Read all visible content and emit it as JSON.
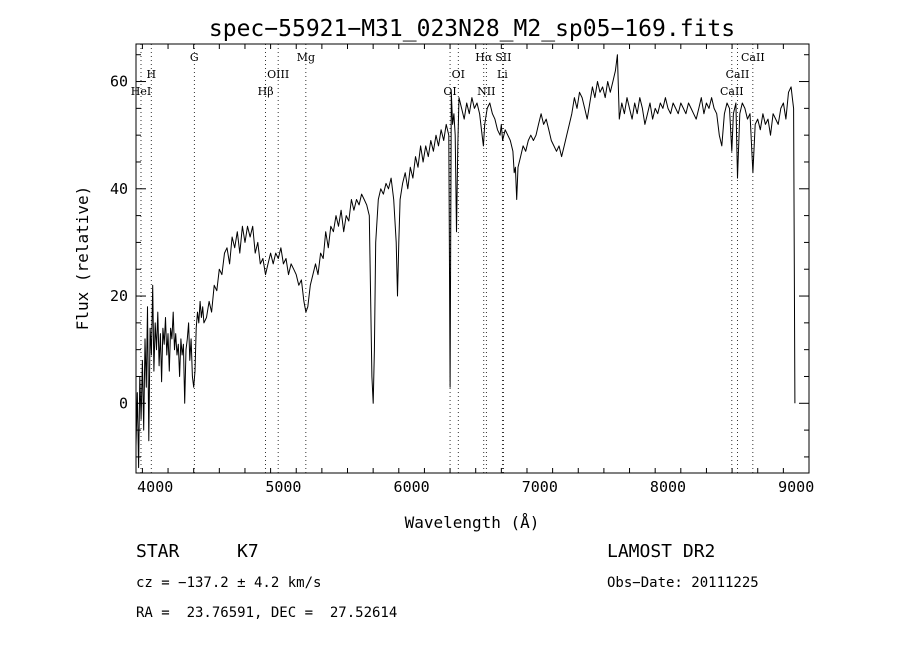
{
  "chart_data": {
    "type": "line",
    "title": "spec−55921−M31_023N28_M2_sp05−169.fits",
    "xlabel": "Wavelength (Å)",
    "ylabel": "Flux (relative)",
    "xlim": [
      3850,
      9100
    ],
    "ylim": [
      -13,
      67
    ],
    "xticks": [
      4000,
      5000,
      6000,
      7000,
      8000,
      9000
    ],
    "yticks": [
      0,
      20,
      40,
      60
    ],
    "grid": false,
    "color": "#000000",
    "spectral_lines": [
      {
        "label": "HeI",
        "x": 3889,
        "row": 3
      },
      {
        "label": "H",
        "x": 3969,
        "row": 1
      },
      {
        "label": "G",
        "x": 4305,
        "row": 0
      },
      {
        "label": "Hβ",
        "x": 4861,
        "row": 3
      },
      {
        "label": "OIII",
        "x": 4959,
        "row": 1
      },
      {
        "label": "Mg",
        "x": 5175,
        "row": 0
      },
      {
        "label": "OI",
        "x": 6300,
        "row": 3
      },
      {
        "label": "OI",
        "x": 6364,
        "row": 1
      },
      {
        "label": "Hα",
        "x": 6563,
        "row": 0
      },
      {
        "label": "NII",
        "x": 6583,
        "row": 3
      },
      {
        "label": "SII",
        "x": 6716,
        "row": 0
      },
      {
        "label": "Li",
        "x": 6708,
        "row": 1
      },
      {
        "label": "CaII",
        "x": 8498,
        "row": 3
      },
      {
        "label": "CaII",
        "x": 8542,
        "row": 1
      },
      {
        "label": "CaII",
        "x": 8662,
        "row": 0
      }
    ],
    "series": [
      {
        "points": [
          [
            3850,
            -8
          ],
          [
            3860,
            2
          ],
          [
            3870,
            -12
          ],
          [
            3880,
            5
          ],
          [
            3890,
            -3
          ],
          [
            3900,
            8
          ],
          [
            3910,
            -5
          ],
          [
            3920,
            12
          ],
          [
            3930,
            3
          ],
          [
            3940,
            18
          ],
          [
            3950,
            -7
          ],
          [
            3960,
            14
          ],
          [
            3970,
            9
          ],
          [
            3980,
            22
          ],
          [
            3990,
            6
          ],
          [
            4000,
            15
          ],
          [
            4010,
            10
          ],
          [
            4020,
            17
          ],
          [
            4030,
            7
          ],
          [
            4040,
            13
          ],
          [
            4050,
            4
          ],
          [
            4060,
            14
          ],
          [
            4070,
            11
          ],
          [
            4080,
            16
          ],
          [
            4090,
            9
          ],
          [
            4100,
            13
          ],
          [
            4110,
            6
          ],
          [
            4120,
            14
          ],
          [
            4130,
            12
          ],
          [
            4140,
            17
          ],
          [
            4150,
            10
          ],
          [
            4160,
            13
          ],
          [
            4170,
            9
          ],
          [
            4180,
            11
          ],
          [
            4190,
            5
          ],
          [
            4200,
            12
          ],
          [
            4210,
            9
          ],
          [
            4220,
            11
          ],
          [
            4230,
            0
          ],
          [
            4240,
            10
          ],
          [
            4250,
            12
          ],
          [
            4260,
            15
          ],
          [
            4270,
            8
          ],
          [
            4280,
            12
          ],
          [
            4290,
            5
          ],
          [
            4300,
            3
          ],
          [
            4310,
            6
          ],
          [
            4320,
            14
          ],
          [
            4330,
            17
          ],
          [
            4340,
            15
          ],
          [
            4350,
            19
          ],
          [
            4360,
            16
          ],
          [
            4370,
            18
          ],
          [
            4380,
            15
          ],
          [
            4400,
            16
          ],
          [
            4420,
            19
          ],
          [
            4440,
            17
          ],
          [
            4460,
            22
          ],
          [
            4480,
            21
          ],
          [
            4500,
            25
          ],
          [
            4520,
            24
          ],
          [
            4540,
            28
          ],
          [
            4560,
            29
          ],
          [
            4580,
            26
          ],
          [
            4600,
            31
          ],
          [
            4620,
            29
          ],
          [
            4640,
            32
          ],
          [
            4660,
            28
          ],
          [
            4680,
            33
          ],
          [
            4700,
            30
          ],
          [
            4720,
            33
          ],
          [
            4740,
            31
          ],
          [
            4760,
            33
          ],
          [
            4780,
            28
          ],
          [
            4800,
            30
          ],
          [
            4820,
            26
          ],
          [
            4840,
            27
          ],
          [
            4860,
            24
          ],
          [
            4880,
            26
          ],
          [
            4900,
            28
          ],
          [
            4920,
            26
          ],
          [
            4940,
            28
          ],
          [
            4960,
            27
          ],
          [
            4980,
            29
          ],
          [
            5000,
            26
          ],
          [
            5020,
            27
          ],
          [
            5040,
            24
          ],
          [
            5060,
            26
          ],
          [
            5080,
            25
          ],
          [
            5100,
            24
          ],
          [
            5120,
            22
          ],
          [
            5140,
            23
          ],
          [
            5160,
            19
          ],
          [
            5175,
            17
          ],
          [
            5190,
            18
          ],
          [
            5210,
            22
          ],
          [
            5230,
            24
          ],
          [
            5250,
            26
          ],
          [
            5270,
            24
          ],
          [
            5290,
            28
          ],
          [
            5310,
            27
          ],
          [
            5330,
            32
          ],
          [
            5350,
            29
          ],
          [
            5370,
            33
          ],
          [
            5390,
            32
          ],
          [
            5410,
            35
          ],
          [
            5430,
            33
          ],
          [
            5450,
            36
          ],
          [
            5470,
            32
          ],
          [
            5490,
            35
          ],
          [
            5510,
            34
          ],
          [
            5530,
            38
          ],
          [
            5550,
            36
          ],
          [
            5570,
            38
          ],
          [
            5590,
            37
          ],
          [
            5610,
            39
          ],
          [
            5630,
            38
          ],
          [
            5650,
            37
          ],
          [
            5670,
            35
          ],
          [
            5680,
            20
          ],
          [
            5690,
            5
          ],
          [
            5700,
            0
          ],
          [
            5710,
            10
          ],
          [
            5720,
            30
          ],
          [
            5740,
            38
          ],
          [
            5760,
            40
          ],
          [
            5780,
            39
          ],
          [
            5800,
            41
          ],
          [
            5820,
            40
          ],
          [
            5840,
            42
          ],
          [
            5860,
            38
          ],
          [
            5880,
            30
          ],
          [
            5890,
            20
          ],
          [
            5900,
            30
          ],
          [
            5910,
            38
          ],
          [
            5930,
            41
          ],
          [
            5950,
            43
          ],
          [
            5970,
            40
          ],
          [
            5990,
            44
          ],
          [
            6010,
            42
          ],
          [
            6030,
            46
          ],
          [
            6050,
            44
          ],
          [
            6070,
            48
          ],
          [
            6090,
            45
          ],
          [
            6110,
            48
          ],
          [
            6130,
            46
          ],
          [
            6150,
            49
          ],
          [
            6170,
            47
          ],
          [
            6190,
            50
          ],
          [
            6210,
            48
          ],
          [
            6230,
            51
          ],
          [
            6250,
            49
          ],
          [
            6270,
            52
          ],
          [
            6290,
            50
          ],
          [
            6300,
            3
          ],
          [
            6310,
            58
          ],
          [
            6320,
            52
          ],
          [
            6330,
            54
          ],
          [
            6340,
            50
          ],
          [
            6350,
            32
          ],
          [
            6360,
            48
          ],
          [
            6370,
            57
          ],
          [
            6390,
            55
          ],
          [
            6410,
            53
          ],
          [
            6430,
            56
          ],
          [
            6450,
            54
          ],
          [
            6470,
            57
          ],
          [
            6490,
            55
          ],
          [
            6510,
            56
          ],
          [
            6530,
            54
          ],
          [
            6550,
            50
          ],
          [
            6560,
            48
          ],
          [
            6570,
            52
          ],
          [
            6590,
            55
          ],
          [
            6610,
            56
          ],
          [
            6630,
            54
          ],
          [
            6650,
            53
          ],
          [
            6670,
            51
          ],
          [
            6690,
            50
          ],
          [
            6700,
            52
          ],
          [
            6710,
            49
          ],
          [
            6730,
            51
          ],
          [
            6750,
            50
          ],
          [
            6770,
            49
          ],
          [
            6790,
            47
          ],
          [
            6800,
            43
          ],
          [
            6810,
            44
          ],
          [
            6820,
            38
          ],
          [
            6830,
            44
          ],
          [
            6850,
            46
          ],
          [
            6870,
            48
          ],
          [
            6890,
            47
          ],
          [
            6910,
            49
          ],
          [
            6930,
            50
          ],
          [
            6950,
            49
          ],
          [
            6970,
            50
          ],
          [
            6990,
            52
          ],
          [
            7010,
            54
          ],
          [
            7030,
            52
          ],
          [
            7050,
            53
          ],
          [
            7070,
            51
          ],
          [
            7090,
            49
          ],
          [
            7110,
            48
          ],
          [
            7130,
            47
          ],
          [
            7150,
            48
          ],
          [
            7170,
            46
          ],
          [
            7190,
            48
          ],
          [
            7210,
            50
          ],
          [
            7230,
            52
          ],
          [
            7250,
            54
          ],
          [
            7270,
            57
          ],
          [
            7290,
            55
          ],
          [
            7310,
            58
          ],
          [
            7330,
            57
          ],
          [
            7350,
            55
          ],
          [
            7370,
            53
          ],
          [
            7390,
            56
          ],
          [
            7410,
            59
          ],
          [
            7430,
            57
          ],
          [
            7450,
            60
          ],
          [
            7470,
            58
          ],
          [
            7490,
            59
          ],
          [
            7510,
            57
          ],
          [
            7530,
            60
          ],
          [
            7550,
            58
          ],
          [
            7570,
            60
          ],
          [
            7590,
            62
          ],
          [
            7605,
            65
          ],
          [
            7620,
            53
          ],
          [
            7640,
            56
          ],
          [
            7660,
            54
          ],
          [
            7680,
            57
          ],
          [
            7700,
            55
          ],
          [
            7720,
            53
          ],
          [
            7740,
            56
          ],
          [
            7760,
            54
          ],
          [
            7780,
            57
          ],
          [
            7800,
            55
          ],
          [
            7820,
            52
          ],
          [
            7840,
            54
          ],
          [
            7860,
            56
          ],
          [
            7880,
            53
          ],
          [
            7900,
            55
          ],
          [
            7920,
            54
          ],
          [
            7940,
            56
          ],
          [
            7960,
            55
          ],
          [
            7980,
            57
          ],
          [
            8000,
            55
          ],
          [
            8020,
            54
          ],
          [
            8040,
            56
          ],
          [
            8060,
            55
          ],
          [
            8080,
            54
          ],
          [
            8100,
            56
          ],
          [
            8120,
            55
          ],
          [
            8140,
            54
          ],
          [
            8160,
            56
          ],
          [
            8180,
            55
          ],
          [
            8200,
            54
          ],
          [
            8220,
            53
          ],
          [
            8240,
            55
          ],
          [
            8260,
            57
          ],
          [
            8280,
            54
          ],
          [
            8300,
            56
          ],
          [
            8320,
            55
          ],
          [
            8340,
            57
          ],
          [
            8360,
            55
          ],
          [
            8380,
            54
          ],
          [
            8400,
            50
          ],
          [
            8420,
            48
          ],
          [
            8440,
            54
          ],
          [
            8460,
            56
          ],
          [
            8480,
            55
          ],
          [
            8498,
            47
          ],
          [
            8510,
            54
          ],
          [
            8530,
            56
          ],
          [
            8542,
            42
          ],
          [
            8560,
            54
          ],
          [
            8580,
            56
          ],
          [
            8600,
            55
          ],
          [
            8620,
            53
          ],
          [
            8640,
            54
          ],
          [
            8662,
            43
          ],
          [
            8680,
            52
          ],
          [
            8700,
            53
          ],
          [
            8720,
            51
          ],
          [
            8740,
            54
          ],
          [
            8760,
            52
          ],
          [
            8780,
            53
          ],
          [
            8800,
            50
          ],
          [
            8820,
            54
          ],
          [
            8840,
            53
          ],
          [
            8860,
            52
          ],
          [
            8880,
            55
          ],
          [
            8900,
            56
          ],
          [
            8920,
            53
          ],
          [
            8940,
            58
          ],
          [
            8960,
            59
          ],
          [
            8970,
            57
          ],
          [
            8980,
            55
          ],
          [
            8985,
            26
          ],
          [
            8990,
            0
          ]
        ]
      }
    ]
  },
  "info": {
    "object_type": "STAR",
    "subclass": "K7",
    "survey": "LAMOST DR2",
    "redshift": "cz = −137.2 ± 4.2 km/s",
    "obs_date": "Obs−Date: 20111225",
    "coords": "RA =  23.76591, DEC =  27.52614"
  }
}
